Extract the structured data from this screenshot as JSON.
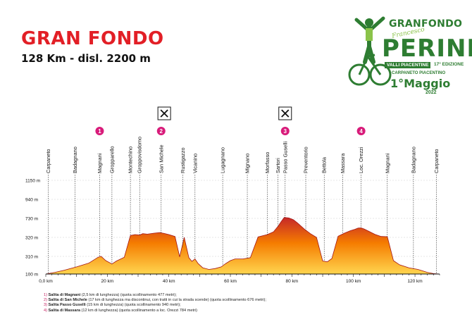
{
  "header": {
    "title": "GRAN FONDO",
    "subtitle": "128 Km - disl. 2200 m"
  },
  "logo": {
    "brand": "GRANFONDO",
    "signature": "Francesco",
    "name": "PERINI",
    "region": "VALLI PIACENTINE",
    "edition": "17° EDIZIONE",
    "start": "CARPANETO PIACENTINO",
    "date": "1°Maggio",
    "year": "2022"
  },
  "colors": {
    "title": "#e21f26",
    "accent": "#d81b7a",
    "profile_top": "#c62828",
    "profile_bottom": "#ffd54f",
    "logo_green": "#2e7d32"
  },
  "chart_data": {
    "type": "area",
    "x_unit": "km",
    "xlim": [
      0,
      128
    ],
    "y_ticks": [
      {
        "value": 100,
        "label": "100 m"
      },
      {
        "value": 310,
        "label": "310 m"
      },
      {
        "value": 320,
        "label": "320 m"
      },
      {
        "value": 730,
        "label": "730 m"
      },
      {
        "value": 940,
        "label": "940 m"
      },
      {
        "value": 1150,
        "label": "1150 m"
      }
    ],
    "x_ticks": [
      {
        "value": 0,
        "label": "0,0 km"
      },
      {
        "value": 20,
        "label": "20 km"
      },
      {
        "value": 40,
        "label": "40 km"
      },
      {
        "value": 60,
        "label": "60 km"
      },
      {
        "value": 80,
        "label": "80 km"
      },
      {
        "value": 100,
        "label": "100 km"
      },
      {
        "value": 120,
        "label": "120 km"
      }
    ],
    "profile": [
      [
        0,
        100
      ],
      [
        3,
        120
      ],
      [
        6,
        145
      ],
      [
        10,
        185
      ],
      [
        14,
        230
      ],
      [
        17,
        300
      ],
      [
        18,
        310
      ],
      [
        19.5,
        260
      ],
      [
        21.5,
        220
      ],
      [
        23,
        255
      ],
      [
        25.5,
        300
      ],
      [
        27.5,
        360
      ],
      [
        29,
        380
      ],
      [
        30.5,
        370
      ],
      [
        31.5,
        400
      ],
      [
        33,
        390
      ],
      [
        35,
        410
      ],
      [
        37,
        425
      ],
      [
        38.5,
        405
      ],
      [
        40,
        380
      ],
      [
        42,
        340
      ],
      [
        43.5,
        305
      ],
      [
        45,
        320
      ],
      [
        46.5,
        295
      ],
      [
        47.5,
        250
      ],
      [
        48.5,
        280
      ],
      [
        49.5,
        225
      ],
      [
        51,
        175
      ],
      [
        53,
        155
      ],
      [
        55,
        165
      ],
      [
        57,
        185
      ],
      [
        58.5,
        225
      ],
      [
        60,
        260
      ],
      [
        61.5,
        280
      ],
      [
        64,
        280
      ],
      [
        66.5,
        295
      ],
      [
        69,
        330
      ],
      [
        72,
        380
      ],
      [
        74,
        440
      ],
      [
        75.5,
        560
      ],
      [
        76.5,
        660
      ],
      [
        77.5,
        740
      ],
      [
        79,
        735
      ],
      [
        80.5,
        700
      ],
      [
        82,
        620
      ],
      [
        84,
        500
      ],
      [
        86,
        400
      ],
      [
        88,
        320
      ],
      [
        90,
        255
      ],
      [
        91.5,
        245
      ],
      [
        93,
        285
      ],
      [
        95,
        345
      ],
      [
        97,
        410
      ],
      [
        99,
        465
      ],
      [
        100.5,
        495
      ],
      [
        101.5,
        520
      ],
      [
        102.5,
        525
      ],
      [
        103.5,
        500
      ],
      [
        105,
        450
      ],
      [
        107,
        385
      ],
      [
        109,
        340
      ],
      [
        111,
        335
      ],
      [
        113,
        260
      ],
      [
        115,
        210
      ],
      [
        118,
        175
      ],
      [
        121,
        155
      ],
      [
        124,
        120
      ],
      [
        126,
        105
      ],
      [
        128,
        100
      ]
    ],
    "places": [
      {
        "km": 0.8,
        "name": "Carpaneto",
        "climb": ""
      },
      {
        "km": 9.5,
        "name": "Badagnano",
        "climb": ""
      },
      {
        "km": 17.5,
        "name": "Magnani",
        "climb": "1"
      },
      {
        "km": 21.5,
        "name": "Gropparello",
        "climb": ""
      },
      {
        "km": 27.5,
        "name": "Montechino",
        "climb": ""
      },
      {
        "km": 30.5,
        "name": "Groppovisdomo",
        "climb": ""
      },
      {
        "km": 37.5,
        "name": "San Michele",
        "climb": "2"
      },
      {
        "km": 44.5,
        "name": "Rustigazzo",
        "climb": ""
      },
      {
        "km": 48.5,
        "name": "Vicanino",
        "climb": ""
      },
      {
        "km": 57.5,
        "name": "Lugagnano",
        "climb": ""
      },
      {
        "km": 65.5,
        "name": "Mignano",
        "climb": ""
      },
      {
        "km": 72,
        "name": "Morfasso",
        "climb": ""
      },
      {
        "km": 75.5,
        "name": "Sartori",
        "climb": ""
      },
      {
        "km": 77.8,
        "name": "Passo Guselli",
        "climb": "3"
      },
      {
        "km": 84.5,
        "name": "Preventorio",
        "climb": ""
      },
      {
        "km": 90.5,
        "name": "Bettola",
        "climb": ""
      },
      {
        "km": 96.5,
        "name": "Massara",
        "climb": ""
      },
      {
        "km": 102.5,
        "name": "Loc. Orezzi",
        "climb": "4"
      },
      {
        "km": 111,
        "name": "Magnani",
        "climb": ""
      },
      {
        "km": 119.5,
        "name": "Badagnano",
        "climb": ""
      },
      {
        "km": 127,
        "name": "Carpaneto",
        "climb": ""
      }
    ],
    "refreshments_km": [
      38.5,
      77.8
    ]
  },
  "notes": [
    {
      "num": "1)",
      "name": "Salita di Magnani",
      "text": "(2,5 km di lunghezza) (quota scollinamento 477 metri);"
    },
    {
      "num": "2)",
      "name": "Salita di San Michele",
      "text": "(17 km di lunghezza ma discontinui, con tratti in cui la strada scende) (quota scollinamento 676 metri);"
    },
    {
      "num": "3)",
      "name": "Salita Passo Guselli",
      "text": "(15 km di lunghezza) (quota scollinamento 940 metri);"
    },
    {
      "num": "4)",
      "name": "Salita di Massara",
      "text": "(12 km di lunghezza) (quota scollinamento a loc. Orezzi 784 metri)"
    }
  ]
}
